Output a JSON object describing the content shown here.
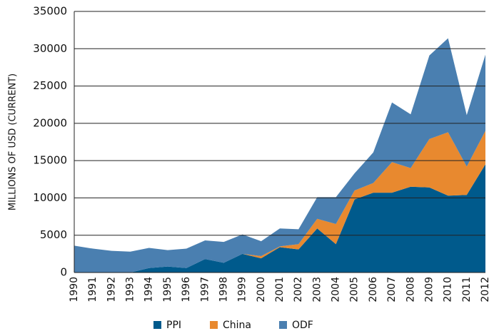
{
  "chart_data": {
    "type": "stacked_area",
    "ylabel": "MILLIONS OF USD (CURRENT)",
    "categories": [
      "1990",
      "1991",
      "1992",
      "1993",
      "1994",
      "1995",
      "1996",
      "1997",
      "1998",
      "1999",
      "2000",
      "2001",
      "2002",
      "2003",
      "2004",
      "2005",
      "2006",
      "2007",
      "2008",
      "2009",
      "2010",
      "2011",
      "2012"
    ],
    "series": [
      {
        "name": "PPI",
        "color": "#005a8c",
        "values": [
          0,
          0,
          0,
          0,
          600,
          800,
          600,
          1800,
          1300,
          2500,
          1900,
          3400,
          3100,
          5900,
          3800,
          9800,
          10700,
          10700,
          11500,
          11400,
          10300,
          10400,
          14500
        ]
      },
      {
        "name": "China",
        "color": "#e8892f",
        "values": [
          0,
          0,
          0,
          0,
          0,
          0,
          0,
          0,
          0,
          0,
          300,
          100,
          700,
          1300,
          2700,
          1200,
          1300,
          4100,
          2500,
          6500,
          8500,
          3800,
          4500
        ]
      },
      {
        "name": "ODF",
        "color": "#4a7fb0",
        "values": [
          3600,
          3200,
          2900,
          2800,
          2700,
          2200,
          2600,
          2500,
          2800,
          2600,
          2000,
          2400,
          2000,
          2900,
          3600,
          2300,
          4100,
          8000,
          7200,
          11200,
          12600,
          6900,
          10200
        ]
      }
    ],
    "ylim": [
      0,
      35000
    ],
    "yticks": [
      0,
      5000,
      10000,
      15000,
      20000,
      25000,
      30000,
      35000
    ],
    "grid": true,
    "legend": "bottom"
  }
}
